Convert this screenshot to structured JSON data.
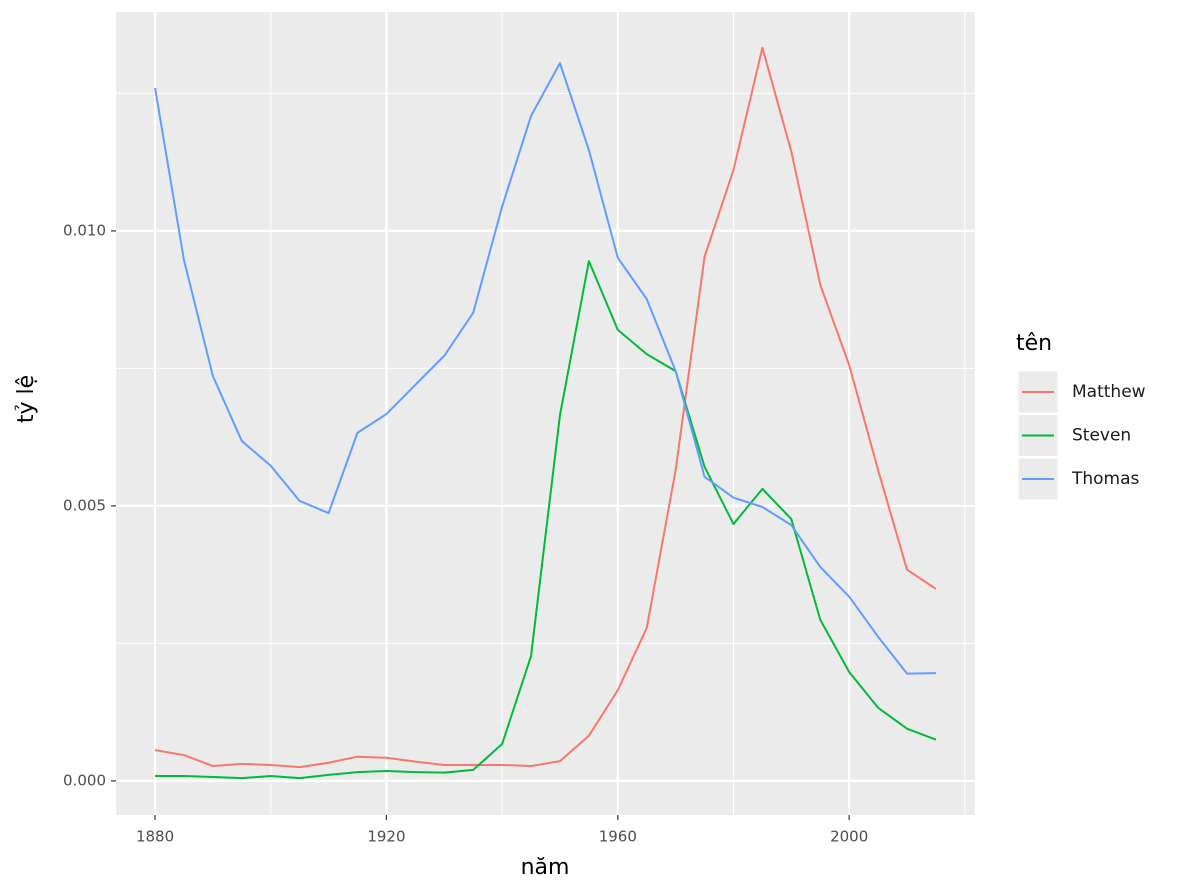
{
  "chart_data": {
    "type": "line",
    "x_label": "năm",
    "y_label": "tỷ lệ",
    "legend_title": "tên",
    "x": [
      1880,
      1885,
      1890,
      1895,
      1900,
      1905,
      1910,
      1915,
      1920,
      1925,
      1930,
      1935,
      1940,
      1945,
      1950,
      1955,
      1960,
      1965,
      1970,
      1975,
      1980,
      1985,
      1990,
      1995,
      2000,
      2005,
      2010,
      2015
    ],
    "series": [
      {
        "name": "Matthew",
        "color": "#f8766d",
        "values": [
          0.00056,
          0.00047,
          0.00027,
          0.00031,
          0.00029,
          0.00025,
          0.00033,
          0.00044,
          0.00042,
          0.00035,
          0.00029,
          0.00029,
          0.00029,
          0.00027,
          0.00036,
          0.00082,
          0.00165,
          0.00278,
          0.00565,
          0.00953,
          0.01111,
          0.01333,
          0.01144,
          0.00902,
          0.00756,
          0.00565,
          0.00384,
          0.00349
        ]
      },
      {
        "name": "Steven",
        "color": "#00ba38",
        "values": [
          9e-05,
          9e-05,
          7e-05,
          5e-05,
          9e-05,
          5e-05,
          0.00011,
          0.00016,
          0.00018,
          0.00016,
          0.00015,
          0.0002,
          0.00067,
          0.00227,
          0.00665,
          0.00945,
          0.0082,
          0.00776,
          0.00745,
          0.00571,
          0.00467,
          0.00531,
          0.00476,
          0.00293,
          0.00198,
          0.00133,
          0.00095,
          0.00075
        ]
      },
      {
        "name": "Thomas",
        "color": "#619cff",
        "values": [
          0.0126,
          0.00947,
          0.00736,
          0.00618,
          0.00573,
          0.00509,
          0.00487,
          0.00633,
          0.00667,
          0.0072,
          0.00773,
          0.00851,
          0.01044,
          0.01209,
          0.01305,
          0.01147,
          0.00951,
          0.00876,
          0.00745,
          0.00553,
          0.00515,
          0.00498,
          0.00465,
          0.00389,
          0.00335,
          0.00262,
          0.00195,
          0.00196
        ]
      }
    ],
    "xlim": [
      1873.25,
      2021.75
    ],
    "xticks": [
      1880,
      1920,
      1960,
      2000
    ],
    "x_minor_grid": [
      1900,
      1940,
      1980,
      2020
    ],
    "ylim": [
      -0.00062,
      0.01398
    ],
    "yticks": [
      {
        "value": 0,
        "label": "0.000"
      },
      {
        "value": 0.005,
        "label": "0.005"
      },
      {
        "value": 0.01,
        "label": "0.010"
      }
    ],
    "y_minor_grid": [
      0.0025,
      0.0075,
      0.0125
    ],
    "grid": true,
    "legend_position": "right"
  }
}
